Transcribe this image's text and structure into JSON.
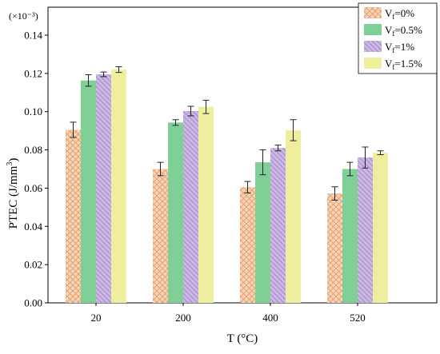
{
  "chart_data": {
    "type": "bar",
    "xlabel": "T (°C)",
    "ylabel": "PTEC (J/mm³)",
    "multiplier": "(×10⁻³)",
    "categories": [
      "20",
      "200",
      "400",
      "520"
    ],
    "ylim": [
      0,
      0.14
    ],
    "yticks": [
      "0.00",
      "0.02",
      "0.04",
      "0.06",
      "0.08",
      "0.10",
      "0.12",
      "0.14"
    ],
    "legend_position": "top-right",
    "series": [
      {
        "name": "Vf=0%",
        "label_main": "V",
        "label_sub": "f",
        "label_rest": "=0%",
        "color": "#fbd3b4",
        "pattern": "crosshatch",
        "values": [
          0.0905,
          0.07,
          0.0605,
          0.0572
        ],
        "errors": [
          0.004,
          0.0035,
          0.003,
          0.0035
        ]
      },
      {
        "name": "Vf=0.5%",
        "label_main": "V",
        "label_sub": "f",
        "label_rest": "=0.5%",
        "color": "#7fcf96",
        "pattern": "none",
        "values": [
          0.1163,
          0.0943,
          0.0735,
          0.07
        ],
        "errors": [
          0.003,
          0.0015,
          0.0065,
          0.0035
        ]
      },
      {
        "name": "Vf=1%",
        "label_main": "V",
        "label_sub": "f",
        "label_rest": "=1%",
        "color": "#cbb6e6",
        "pattern": "diagonal",
        "values": [
          0.1195,
          0.1003,
          0.081,
          0.076
        ],
        "errors": [
          0.0012,
          0.0025,
          0.0015,
          0.0055
        ]
      },
      {
        "name": "Vf=1.5%",
        "label_main": "V",
        "label_sub": "f",
        "label_rest": "=1.5%",
        "color": "#eeee9e",
        "pattern": "none",
        "values": [
          0.122,
          0.1025,
          0.0903,
          0.0785
        ],
        "errors": [
          0.0015,
          0.0035,
          0.0055,
          0.001
        ]
      }
    ]
  }
}
